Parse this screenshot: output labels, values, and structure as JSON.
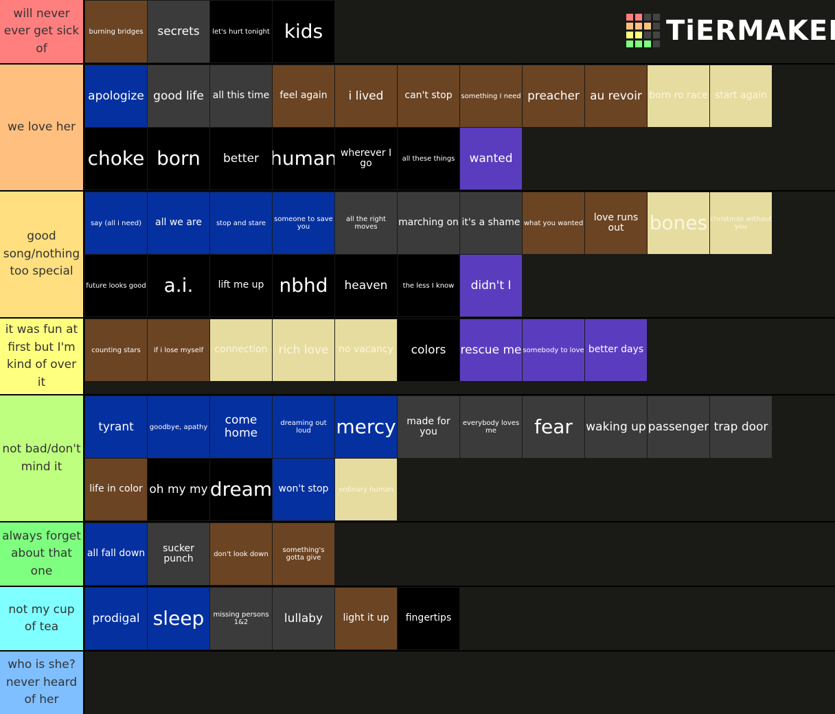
{
  "logo": "TiERMAKER",
  "tiers": [
    {
      "label": "will never ever get sick of",
      "color": "#ff7f7f",
      "items": [
        {
          "text": "burning bridges",
          "color": "#6b4423"
        },
        {
          "text": "secrets",
          "color": "#3b3b3b"
        },
        {
          "text": "let's hurt tonight",
          "color": "#000000"
        },
        {
          "text": "kids",
          "color": "#000000"
        }
      ]
    },
    {
      "label": "we love her",
      "color": "#ffbf7f",
      "items": [
        {
          "text": "apologize",
          "color": "#0530a0"
        },
        {
          "text": "good life",
          "color": "#3b3b3b"
        },
        {
          "text": "all this time",
          "color": "#3b3b3b"
        },
        {
          "text": "feel again",
          "color": "#6b4423"
        },
        {
          "text": "i lived",
          "color": "#6b4423"
        },
        {
          "text": "can't stop",
          "color": "#6b4423"
        },
        {
          "text": "something I need",
          "color": "#6b4423"
        },
        {
          "text": "preacher",
          "color": "#6b4423"
        },
        {
          "text": "au revoir",
          "color": "#6b4423"
        },
        {
          "text": "born ro race",
          "color": "#e6dca0"
        },
        {
          "text": "start again",
          "color": "#e6dca0"
        },
        {
          "text": "choke",
          "color": "#000000"
        },
        {
          "text": "born",
          "color": "#000000"
        },
        {
          "text": "better",
          "color": "#000000"
        },
        {
          "text": "human",
          "color": "#000000"
        },
        {
          "text": "wherever I go",
          "color": "#000000"
        },
        {
          "text": "all these things",
          "color": "#000000"
        },
        {
          "text": "wanted",
          "color": "#5a3dbf"
        }
      ]
    },
    {
      "label": "good song/nothing too special",
      "color": "#ffdf7f",
      "items": [
        {
          "text": "say (all i need)",
          "color": "#0530a0"
        },
        {
          "text": "all we are",
          "color": "#0530a0"
        },
        {
          "text": "stop and stare",
          "color": "#0530a0"
        },
        {
          "text": "someone to save you",
          "color": "#0530a0"
        },
        {
          "text": "all the right moves",
          "color": "#3b3b3b"
        },
        {
          "text": "marching on",
          "color": "#3b3b3b"
        },
        {
          "text": "it's a shame",
          "color": "#3b3b3b"
        },
        {
          "text": "what you wanted",
          "color": "#6b4423"
        },
        {
          "text": "love runs out",
          "color": "#6b4423"
        },
        {
          "text": "bones",
          "color": "#e6dca0"
        },
        {
          "text": "christmas without you",
          "color": "#e6dca0"
        },
        {
          "text": "future looks good",
          "color": "#000000"
        },
        {
          "text": "a.i.",
          "color": "#000000"
        },
        {
          "text": "lift me up",
          "color": "#000000"
        },
        {
          "text": "nbhd",
          "color": "#000000"
        },
        {
          "text": "heaven",
          "color": "#000000"
        },
        {
          "text": "the less I know",
          "color": "#000000"
        },
        {
          "text": "didn't I",
          "color": "#5a3dbf"
        }
      ]
    },
    {
      "label": "it was fun at first but I'm kind of over it",
      "color": "#ffff7f",
      "items": [
        {
          "text": "counting stars",
          "color": "#6b4423"
        },
        {
          "text": "if i lose myself",
          "color": "#6b4423"
        },
        {
          "text": "connection",
          "color": "#e6dca0"
        },
        {
          "text": "rich love",
          "color": "#e6dca0"
        },
        {
          "text": "no vacancy",
          "color": "#e6dca0"
        },
        {
          "text": "colors",
          "color": "#000000"
        },
        {
          "text": "rescue me",
          "color": "#5a3dbf"
        },
        {
          "text": "somebody to love",
          "color": "#5a3dbf"
        },
        {
          "text": "better days",
          "color": "#5a3dbf"
        }
      ]
    },
    {
      "label": "not bad/don't mind it",
      "color": "#bfff7f",
      "items": [
        {
          "text": "tyrant",
          "color": "#0530a0"
        },
        {
          "text": "goodbye, apathy",
          "color": "#0530a0"
        },
        {
          "text": "come home",
          "color": "#0530a0"
        },
        {
          "text": "dreaming out loud",
          "color": "#0530a0"
        },
        {
          "text": "mercy",
          "color": "#0530a0"
        },
        {
          "text": "made for you",
          "color": "#3b3b3b"
        },
        {
          "text": "everybody loves me",
          "color": "#3b3b3b"
        },
        {
          "text": "fear",
          "color": "#3b3b3b"
        },
        {
          "text": "waking up",
          "color": "#3b3b3b"
        },
        {
          "text": "passenger",
          "color": "#3b3b3b"
        },
        {
          "text": "trap door",
          "color": "#3b3b3b"
        },
        {
          "text": "life in color",
          "color": "#6b4423"
        },
        {
          "text": "oh my my",
          "color": "#000000"
        },
        {
          "text": "dream",
          "color": "#000000"
        },
        {
          "text": "won't stop",
          "color": "#0530a0"
        },
        {
          "text": "ordinary human",
          "color": "#e6dca0"
        }
      ]
    },
    {
      "label": "always forget about that one",
      "color": "#7fff7f",
      "items": [
        {
          "text": "all fall down",
          "color": "#0530a0"
        },
        {
          "text": "sucker punch",
          "color": "#3b3b3b"
        },
        {
          "text": "don't look down",
          "color": "#6b4423"
        },
        {
          "text": "something's gotta give",
          "color": "#6b4423"
        }
      ]
    },
    {
      "label": "not my cup of tea",
      "color": "#7fffff",
      "items": [
        {
          "text": "prodigal",
          "color": "#0530a0"
        },
        {
          "text": "sleep",
          "color": "#0530a0"
        },
        {
          "text": "missing persons 1&2",
          "color": "#3b3b3b"
        },
        {
          "text": "lullaby",
          "color": "#3b3b3b"
        },
        {
          "text": "light it up",
          "color": "#6b4423"
        },
        {
          "text": "fingertips",
          "color": "#000000"
        }
      ]
    },
    {
      "label": "who is she? never heard of her",
      "color": "#7fbfff",
      "items": []
    }
  ]
}
